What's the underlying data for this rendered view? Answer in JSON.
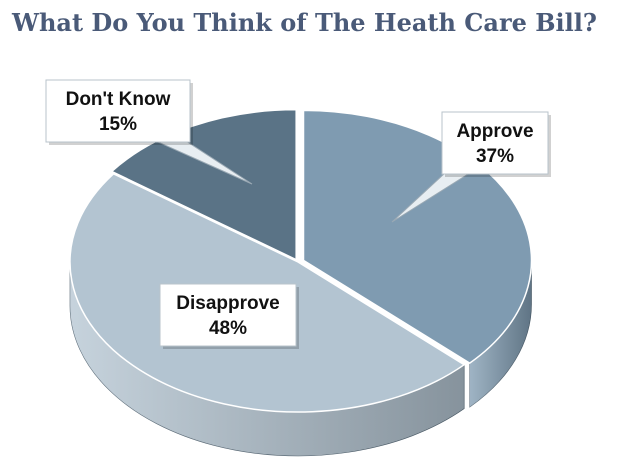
{
  "chart_data": {
    "type": "pie",
    "title": "What Do You Think of The Heath Care Bill?",
    "slices": [
      {
        "name": "Approve",
        "value": 37,
        "display": "37%",
        "color": "#7f9bb1"
      },
      {
        "name": "Disapprove",
        "value": 48,
        "display": "48%",
        "color": "#b3c4d1"
      },
      {
        "name": "Don't Know",
        "value": 15,
        "display": "15%",
        "color": "#5a7386"
      }
    ],
    "style": "3d-pie",
    "legend": "none",
    "title_color": "#4a5a78"
  }
}
